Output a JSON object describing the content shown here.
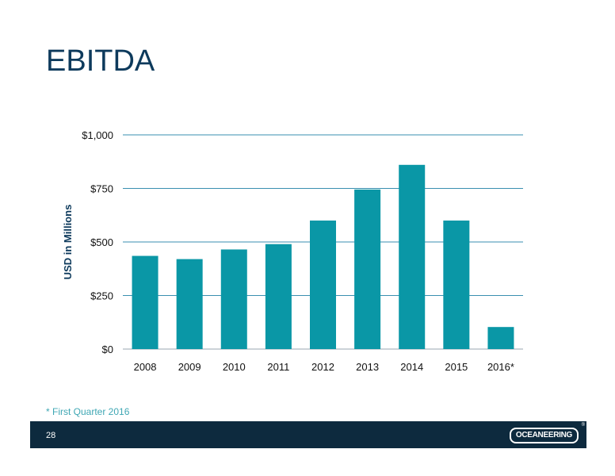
{
  "slide": {
    "title": "EBITDA",
    "footnote": "* First Quarter 2016",
    "page_number": "28",
    "logo_text": "OCEANEERING",
    "logo_mark": "®"
  },
  "colors": {
    "bar": "#0a97a6",
    "grid": "#3a8fb0",
    "title": "#0d3a5c",
    "footer": "#0d2a3e"
  },
  "chart_data": {
    "type": "bar",
    "title": "",
    "xlabel": "",
    "ylabel": "USD in Millions",
    "categories": [
      "2008",
      "2009",
      "2010",
      "2011",
      "2012",
      "2013",
      "2014",
      "2015",
      "2016*"
    ],
    "values": [
      435,
      420,
      465,
      490,
      600,
      745,
      860,
      600,
      103
    ],
    "ylim": [
      0,
      1000
    ],
    "yticks": [
      0,
      250,
      500,
      750,
      1000
    ],
    "ytick_labels": [
      "$0",
      "$250",
      "$500",
      "$750",
      "$1,000"
    ],
    "grid": true,
    "legend": "none"
  }
}
